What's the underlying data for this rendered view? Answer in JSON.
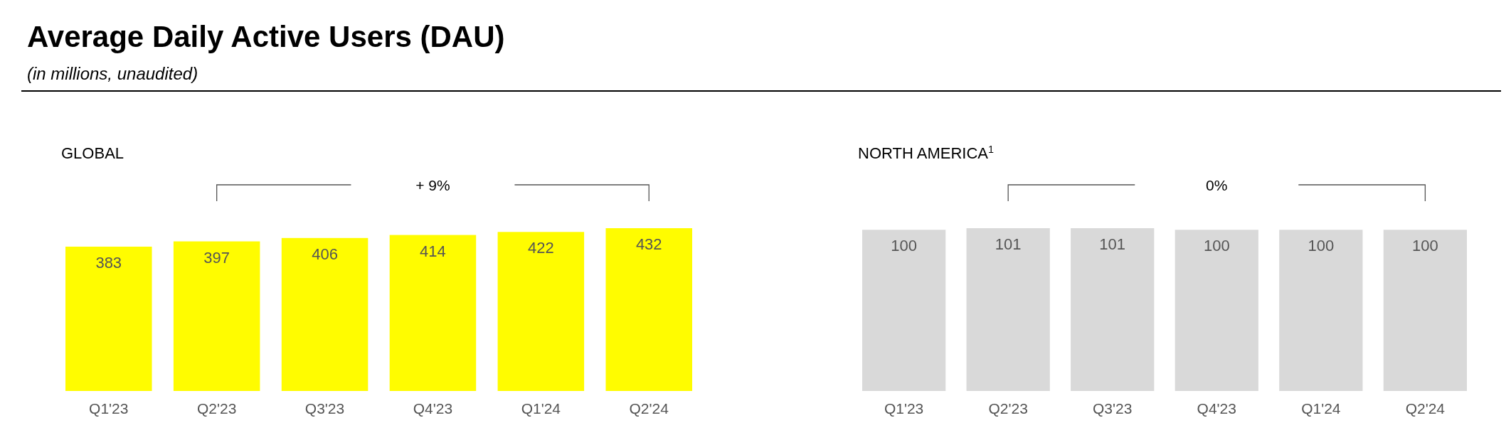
{
  "chart_data": [
    {
      "type": "other",
      "title": "Average Daily Active Users (DAU)",
      "subtitle": "(in millions, unaudited)"
    },
    {
      "type": "bar",
      "title": "GLOBAL",
      "categories": [
        "Q1'23",
        "Q2'23",
        "Q3'23",
        "Q4'23",
        "Q1'24",
        "Q2'24"
      ],
      "values": [
        383,
        397,
        406,
        414,
        422,
        432
      ],
      "color": "#fffc00",
      "data_labels": true,
      "annotations": [
        "+ 9%"
      ]
    },
    {
      "type": "bar",
      "title": "NORTH AMERICA$^{1}$",
      "categories": [
        "Q1'23",
        "Q2'23",
        "Q3'23",
        "Q4'23",
        "Q1'24",
        "Q2'24"
      ],
      "values": [
        100,
        101,
        101,
        100,
        100,
        100
      ],
      "color": "#d9d9d9",
      "data_labels": true,
      "annotations": [
        "0%"
      ]
    }
  ]
}
